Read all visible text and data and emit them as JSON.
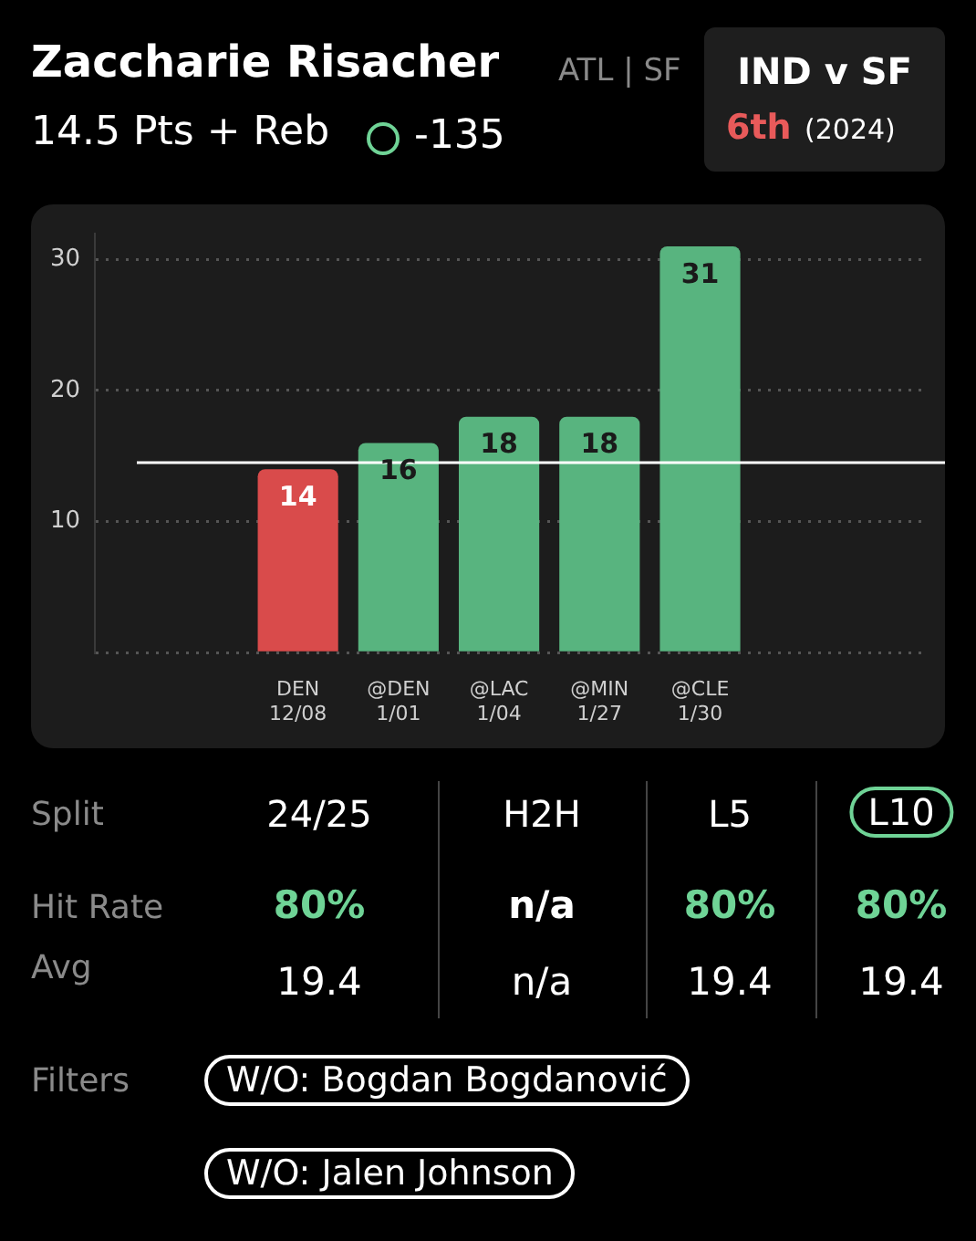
{
  "chart_data": {
    "type": "bar",
    "title": "Zaccharie Risacher",
    "subtitle": "14.5 Pts + Reb",
    "categories": [
      "DEN\n12/08",
      "@DEN\n1/01",
      "@LAC\n1/04",
      "@MIN\n1/27",
      "@CLE\n1/30"
    ],
    "values": [
      14,
      16,
      18,
      18,
      31
    ],
    "colors": [
      "#d94b4b",
      "#58b47f",
      "#58b47f",
      "#58b47f",
      "#58b47f"
    ],
    "data_labels": true,
    "ylim": [
      0,
      32
    ],
    "yticks": [
      {
        "value": 0,
        "label": null
      },
      10,
      20,
      30
    ],
    "grid": "y",
    "ref_lines": [
      {
        "axis": "y",
        "value": 14.5,
        "color": "#ffffff"
      }
    ],
    "annotations": [
      "ATL | SF",
      "-135",
      "IND v SF",
      "6th",
      "(2024)",
      "Split",
      "24/25",
      "H2H",
      "L5",
      "L10",
      "Hit Rate",
      "80%",
      "n/a",
      "80%",
      "80%",
      "Avg",
      "19.4",
      "n/a",
      "19.4",
      "19.4",
      "Filters",
      "W/O: Bogdan Bogdanović",
      "W/O: Jalen Johnson"
    ]
  }
}
